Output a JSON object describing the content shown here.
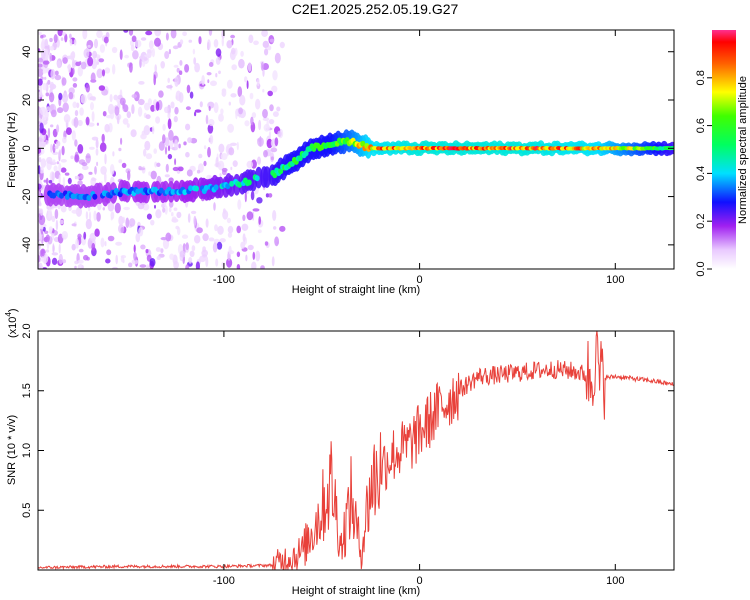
{
  "title": "C2E1.2025.252.05.19.G27",
  "chart_data": [
    {
      "type": "heatmap",
      "xlabel": "Height of straight line (km)",
      "ylabel": "Frequency (Hz)",
      "xlim": [
        -195,
        130
      ],
      "ylim": [
        -50,
        49
      ],
      "xticks": [
        -100,
        0,
        100
      ],
      "xtick_labels": [
        "-100",
        "0",
        "100"
      ],
      "yticks": [
        -40,
        -20,
        0,
        20,
        40
      ],
      "ytick_labels": [
        "-40",
        "-20",
        "0",
        "20",
        "40"
      ],
      "colorbar": {
        "label": "Normalized spectral amplitude",
        "range": [
          0,
          1
        ],
        "ticks": [
          0.0,
          0.2,
          0.4,
          0.6,
          0.8
        ],
        "tick_labels": [
          "0.0",
          "0.2",
          "0.4",
          "0.6",
          "0.8"
        ]
      },
      "ridge": {
        "x": [
          -190,
          -170,
          -150,
          -130,
          -110,
          -90,
          -75,
          -65,
          -55,
          -45,
          -35,
          -25,
          0,
          50,
          90,
          130
        ],
        "freq": [
          -19,
          -20,
          -18,
          -18,
          -17,
          -14,
          -11,
          -6,
          0,
          2,
          3,
          0,
          0,
          0,
          0,
          0
        ],
        "amp": [
          0.35,
          0.35,
          0.38,
          0.38,
          0.42,
          0.5,
          0.55,
          0.6,
          0.6,
          0.62,
          0.75,
          0.9,
          0.95,
          0.95,
          0.9,
          0.55
        ]
      }
    },
    {
      "type": "line",
      "xlabel": "Height of straight line (km)",
      "ylabel": "SNR (10 * v/v)",
      "yscale_label": "(x10",
      "yscale_exp": "4",
      "yscale_close": ")",
      "xlim": [
        -195,
        130
      ],
      "ylim": [
        0,
        2.0
      ],
      "xticks": [
        -100,
        0,
        100
      ],
      "xtick_labels": [
        "-100",
        "0",
        "100"
      ],
      "yticks": [
        0.5,
        1.0,
        1.5,
        2.0
      ],
      "ytick_labels": [
        "0.5",
        "1.0",
        "1.5",
        "2.0"
      ],
      "color": "#e8413a",
      "series": [
        {
          "name": "SNR",
          "x": [
            -195,
            -150,
            -100,
            -75,
            -70,
            -60,
            -50,
            -45,
            -40,
            -35,
            -30,
            -25,
            -20,
            -15,
            -10,
            -5,
            0,
            5,
            10,
            20,
            30,
            40,
            50,
            60,
            70,
            80,
            88,
            90,
            92,
            100,
            110,
            120,
            130
          ],
          "values": [
            0.02,
            0.03,
            0.03,
            0.04,
            0.08,
            0.15,
            0.5,
            0.75,
            0.2,
            0.6,
            0.15,
            0.7,
            0.85,
            0.95,
            1.0,
            1.05,
            1.15,
            1.25,
            1.35,
            1.5,
            1.62,
            1.63,
            1.65,
            1.67,
            1.68,
            1.66,
            1.62,
            1.85,
            1.6,
            1.62,
            1.6,
            1.58,
            1.55
          ]
        }
      ]
    }
  ]
}
